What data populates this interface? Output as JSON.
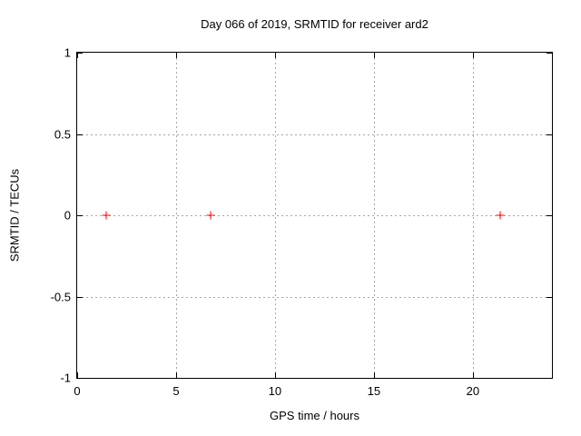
{
  "chart_data": {
    "type": "scatter",
    "title": "Day 066 of 2019, SRMTID for receiver ard2",
    "xlabel": "GPS time / hours",
    "ylabel": "SRMTID / TECUs",
    "xlim": [
      0,
      24
    ],
    "ylim": [
      -1,
      1
    ],
    "xticks": [
      0,
      5,
      10,
      15,
      20
    ],
    "yticks": [
      -1,
      -0.5,
      0,
      0.5,
      1
    ],
    "grid": true,
    "legend": "none",
    "series": [
      {
        "name": "SRMTID",
        "marker": "plus",
        "color": "#ff0000",
        "points": [
          {
            "x": 1.45,
            "y": 0
          },
          {
            "x": 6.75,
            "y": 0
          },
          {
            "x": 21.4,
            "y": 0
          }
        ]
      }
    ]
  },
  "colors": {
    "background": "#ffffff",
    "border": "#000000",
    "grid": "#a6a6a6",
    "marker": "#ff0000",
    "text": "#000000"
  }
}
